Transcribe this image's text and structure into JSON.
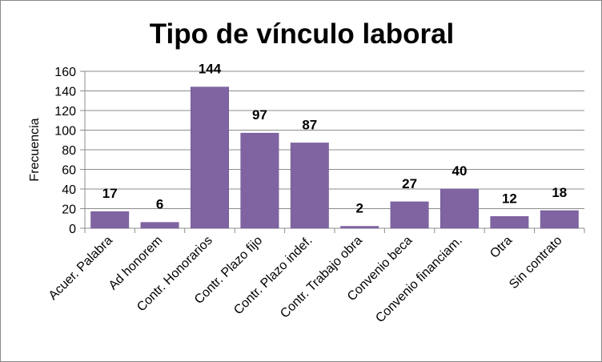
{
  "chart_data": {
    "type": "bar",
    "title": "Tipo de vínculo laboral",
    "xlabel": "",
    "ylabel": "Frecuencia",
    "categories": [
      "Acuer. Palabra",
      "Ad honorem",
      "Contr. Honorarios",
      "Contr. Plazo fijo",
      "Contr. Plazo indef.",
      "Contr. Trabajo obra",
      "Convenio beca",
      "Convenio financiam.",
      "Otra",
      "Sin contrato"
    ],
    "values": [
      17,
      6,
      144,
      97,
      87,
      2,
      27,
      40,
      12,
      18
    ],
    "data_labels": [
      "17",
      "6",
      "144",
      "97",
      "87",
      "2",
      "27",
      "40",
      "12",
      "18"
    ],
    "yticks": [
      "0",
      "20",
      "40",
      "60",
      "80",
      "100",
      "120",
      "140",
      "160"
    ],
    "ylim": [
      0,
      160
    ],
    "grid": true,
    "legend": "none",
    "colors": {
      "bar": "#8064A2",
      "bar_stroke": "#6a5290",
      "grid": "#8c8c8c",
      "axis": "#8c8c8c",
      "border": "#8a8a8a"
    }
  }
}
